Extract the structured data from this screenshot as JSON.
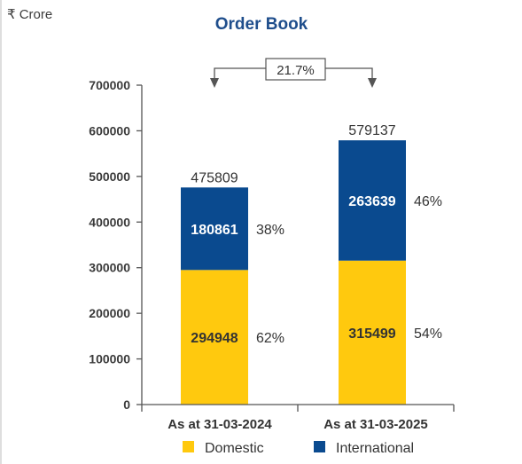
{
  "chart_data": {
    "type": "bar",
    "stacked": true,
    "title": "Order Book",
    "unit_label": "₹ Crore",
    "categories": [
      "As at 31-03-2024",
      "As at 31-03-2025"
    ],
    "series": [
      {
        "name": "Domestic",
        "values": [
          294948,
          315499
        ],
        "percent_labels": [
          "62%",
          "54%"
        ],
        "color": "#FFC90E"
      },
      {
        "name": "International",
        "values": [
          180861,
          263639
        ],
        "percent_labels": [
          "38%",
          "46%"
        ],
        "color": "#0A4A8F"
      }
    ],
    "totals": [
      475809,
      579137
    ],
    "growth_label": "21.7%",
    "ylim": [
      0,
      700000
    ],
    "yticks": [
      0,
      100000,
      200000,
      300000,
      400000,
      500000,
      600000,
      700000
    ],
    "grid": false,
    "legend_position": "bottom"
  },
  "colors": {
    "title": "#1F4E8C",
    "axis_text": "#3a3a3a",
    "axis_line": "#555555",
    "frame_line": "#bdbdbd"
  }
}
